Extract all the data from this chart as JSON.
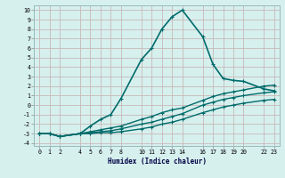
{
  "xlabel": "Humidex (Indice chaleur)",
  "background_color": "#d6f0ee",
  "grid_color": "#c8b8b8",
  "line_color": "#006b6b",
  "x_ticks": [
    0,
    1,
    2,
    4,
    5,
    6,
    7,
    8,
    10,
    11,
    12,
    13,
    14,
    16,
    17,
    18,
    19,
    20,
    22,
    23
  ],
  "xlim": [
    -0.5,
    23.5
  ],
  "ylim": [
    -4.3,
    10.5
  ],
  "y_ticks": [
    -4,
    -3,
    -2,
    -1,
    0,
    1,
    2,
    3,
    4,
    5,
    6,
    7,
    8,
    9,
    10
  ],
  "series": [
    {
      "x": [
        0,
        1,
        2,
        4,
        5,
        6,
        7,
        8,
        10,
        11,
        12,
        13,
        14,
        16,
        17,
        18,
        19,
        20,
        22,
        23
      ],
      "y": [
        -3.0,
        -3.0,
        -3.3,
        -3.0,
        -2.2,
        -1.5,
        -1.0,
        0.7,
        4.8,
        6.0,
        8.0,
        9.3,
        10.0,
        7.2,
        4.3,
        2.8,
        2.6,
        2.5,
        1.7,
        1.5
      ],
      "linewidth": 1.2
    },
    {
      "x": [
        0,
        1,
        2,
        4,
        5,
        6,
        7,
        8,
        10,
        11,
        12,
        13,
        14,
        16,
        17,
        18,
        19,
        20,
        22,
        23
      ],
      "y": [
        -3.0,
        -3.0,
        -3.3,
        -3.0,
        -2.8,
        -2.6,
        -2.4,
        -2.2,
        -1.5,
        -1.2,
        -0.8,
        -0.5,
        -0.3,
        0.5,
        0.9,
        1.2,
        1.4,
        1.6,
        2.0,
        2.1
      ],
      "linewidth": 1.0
    },
    {
      "x": [
        0,
        1,
        2,
        4,
        5,
        6,
        7,
        8,
        10,
        11,
        12,
        13,
        14,
        16,
        17,
        18,
        19,
        20,
        22,
        23
      ],
      "y": [
        -3.0,
        -3.0,
        -3.3,
        -3.0,
        -2.9,
        -2.8,
        -2.7,
        -2.5,
        -2.0,
        -1.8,
        -1.5,
        -1.2,
        -0.9,
        0.0,
        0.3,
        0.6,
        0.8,
        1.0,
        1.3,
        1.4
      ],
      "linewidth": 1.0
    },
    {
      "x": [
        0,
        1,
        2,
        4,
        5,
        6,
        7,
        8,
        10,
        11,
        12,
        13,
        14,
        16,
        17,
        18,
        19,
        20,
        22,
        23
      ],
      "y": [
        -3.0,
        -3.0,
        -3.3,
        -3.0,
        -3.0,
        -2.9,
        -2.9,
        -2.8,
        -2.5,
        -2.3,
        -2.0,
        -1.8,
        -1.5,
        -0.8,
        -0.5,
        -0.2,
        0.0,
        0.2,
        0.5,
        0.6
      ],
      "linewidth": 1.0
    }
  ]
}
